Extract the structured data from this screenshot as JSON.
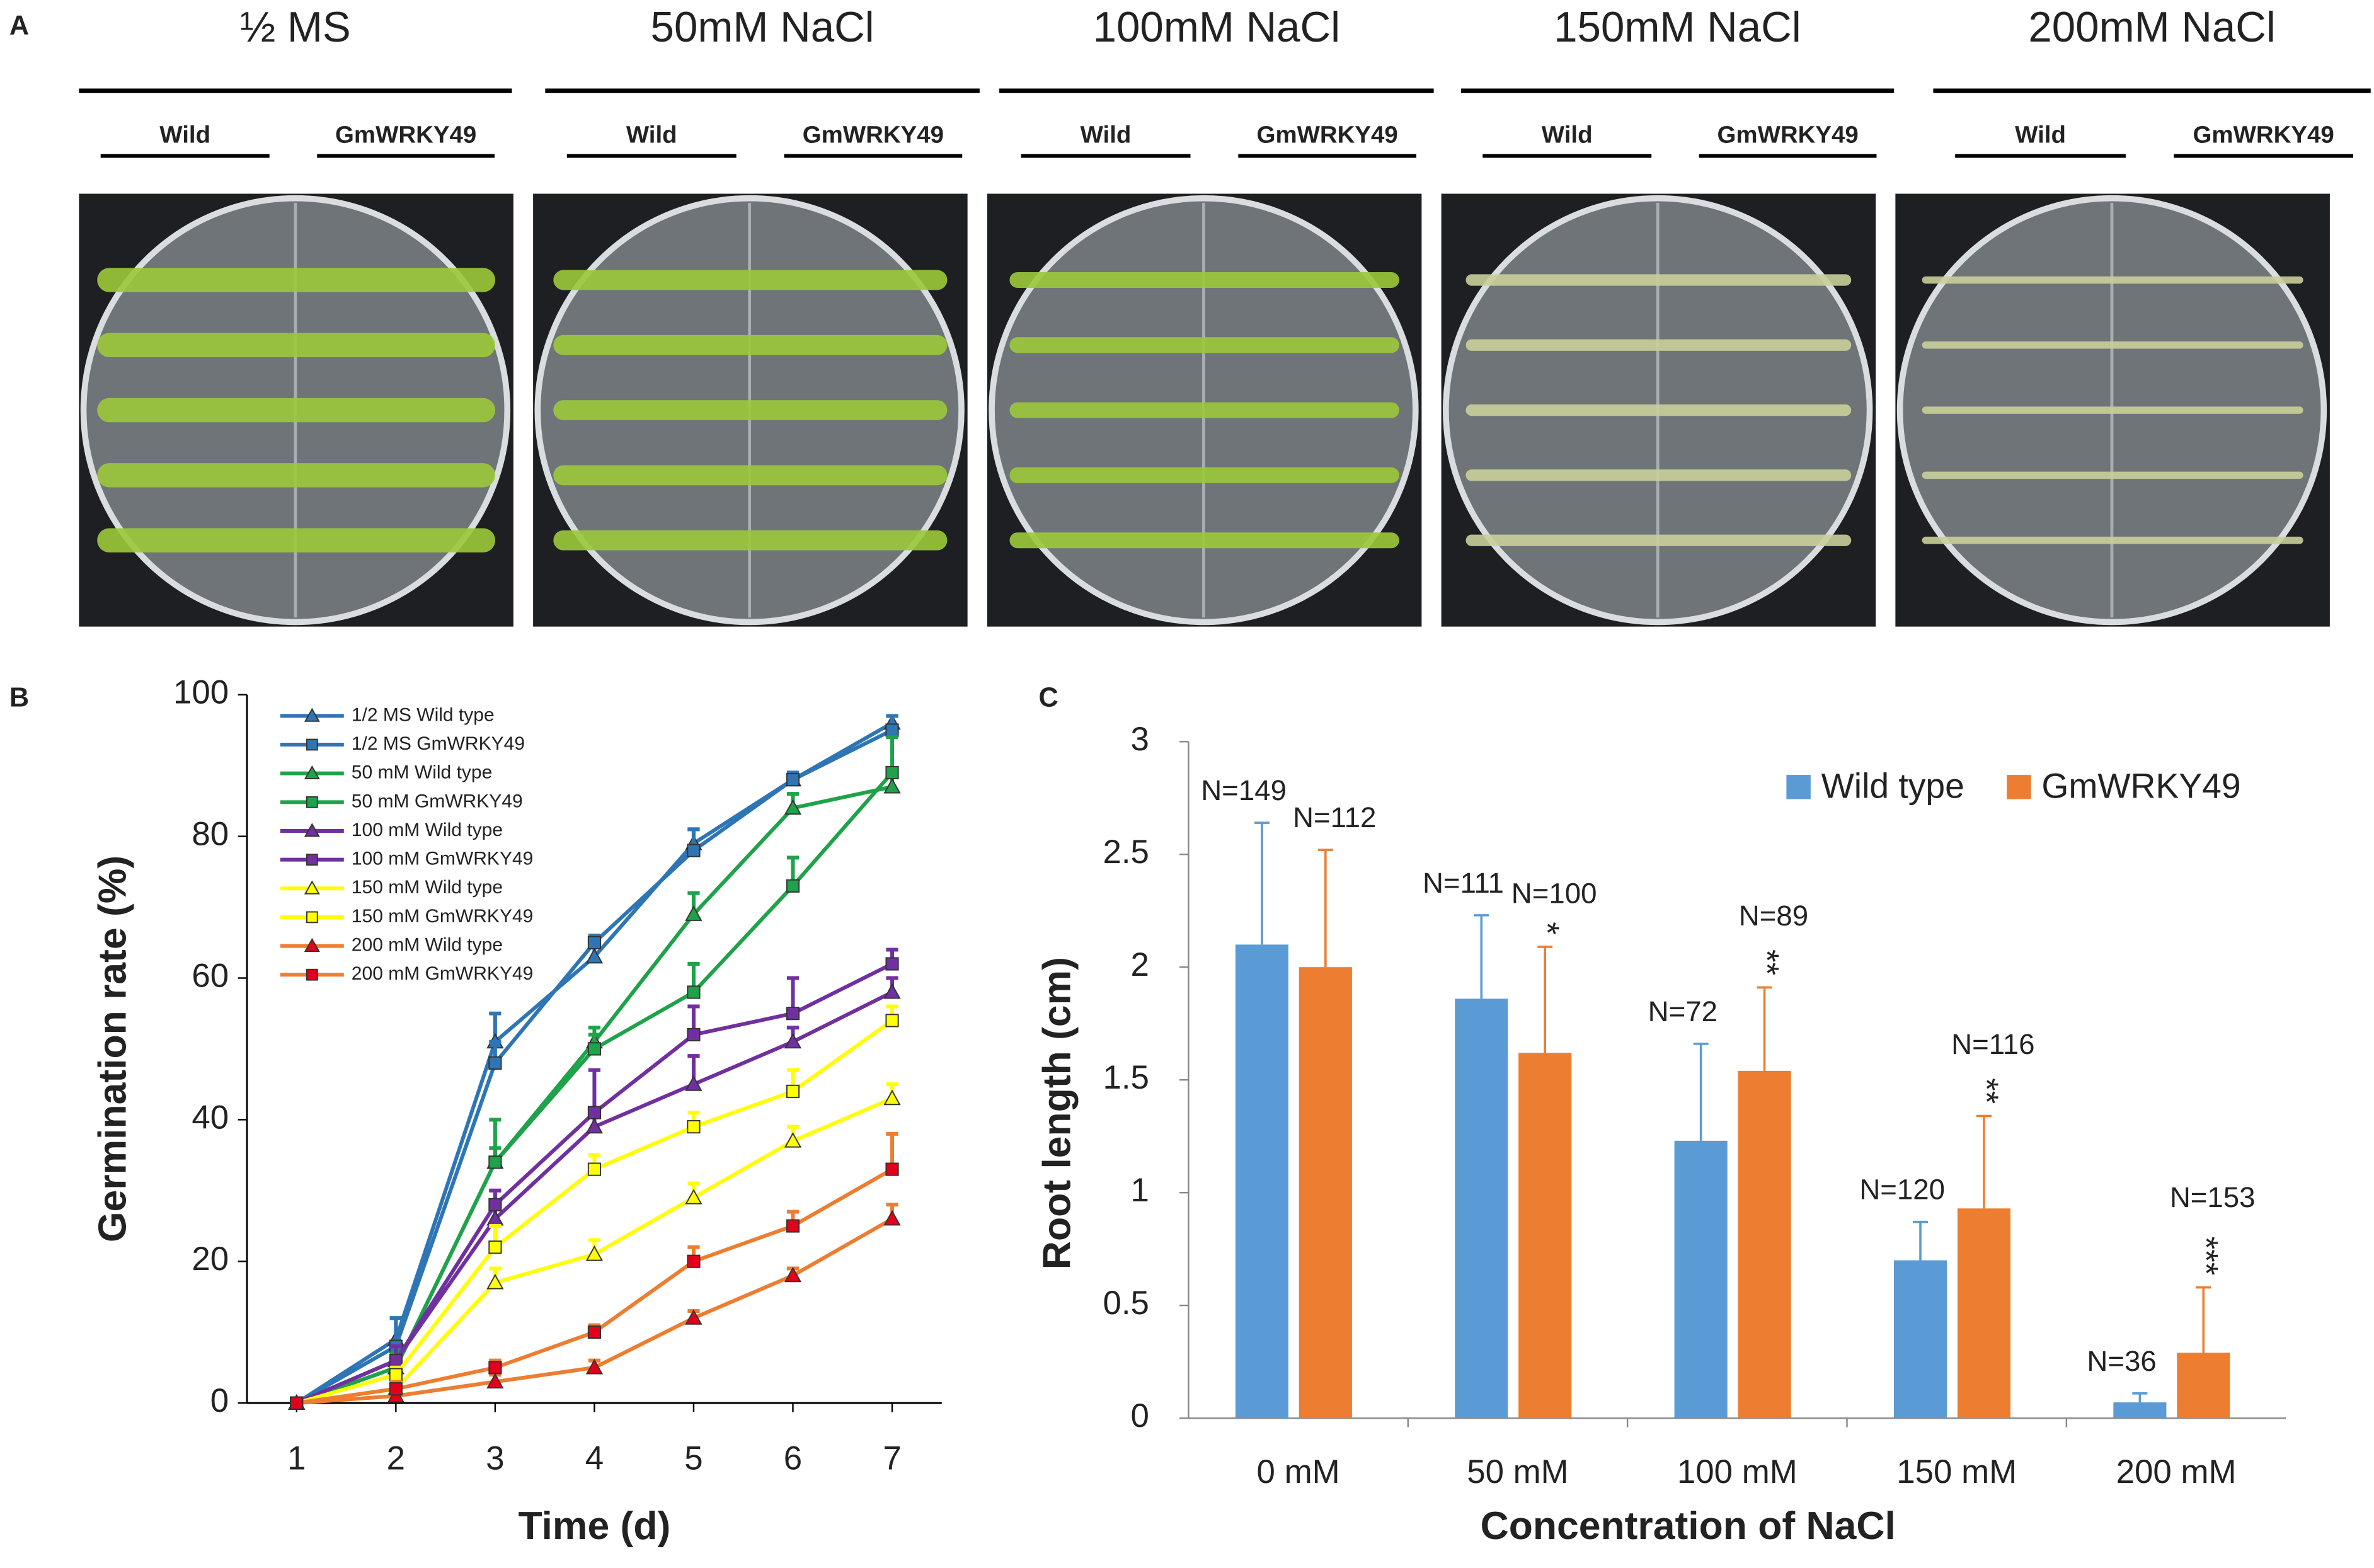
{
  "panels": {
    "a": {
      "label": "A",
      "conditions": [
        "½ MS",
        "50mM NaCl",
        "100mM NaCl",
        "150mM NaCl",
        "200mM NaCl"
      ],
      "genotypes": [
        "Wild",
        "GmWRKY49"
      ]
    },
    "b": {
      "label": "B"
    },
    "c": {
      "label": "C"
    }
  },
  "chart_data": [
    {
      "type": "line",
      "x_label": "Time (d)",
      "y_label": "Germination rate (%)",
      "x": [
        1,
        2,
        3,
        4,
        5,
        6,
        7
      ],
      "xlim": [
        0.5,
        7.5
      ],
      "xticks": [
        1,
        2,
        3,
        4,
        5,
        6,
        7
      ],
      "ylim": [
        0,
        100
      ],
      "yticks": [
        0,
        20,
        40,
        60,
        80,
        100
      ],
      "legend": "upper left",
      "series": [
        {
          "name": "1/2 MS Wild type",
          "color": "#2e75b6",
          "marker": "triangle",
          "values": [
            0,
            9,
            51,
            63,
            79,
            88,
            96
          ],
          "errors": [
            0,
            3,
            4,
            2,
            2,
            1,
            1
          ]
        },
        {
          "name": "1/2 MS GmWRKY49",
          "color": "#2e75b6",
          "marker": "square",
          "values": [
            0,
            8,
            48,
            65,
            78,
            88,
            95
          ],
          "errors": [
            0,
            4,
            3,
            1,
            3,
            1,
            2
          ]
        },
        {
          "name": "50 mM Wild type",
          "color": "#1ea24a",
          "marker": "triangle",
          "values": [
            0,
            5,
            34,
            51,
            69,
            84,
            87
          ],
          "errors": [
            0,
            2,
            6,
            2,
            3,
            2,
            2
          ]
        },
        {
          "name": "50 mM GmWRKY49",
          "color": "#1ea24a",
          "marker": "square",
          "values": [
            0,
            5,
            34,
            50,
            58,
            73,
            89
          ],
          "errors": [
            0,
            2,
            2,
            2,
            4,
            4,
            5
          ]
        },
        {
          "name": "100 mM Wild type",
          "color": "#7030a0",
          "marker": "triangle",
          "values": [
            0,
            6,
            26,
            39,
            45,
            51,
            58
          ],
          "errors": [
            0,
            2,
            2,
            2,
            4,
            2,
            2
          ]
        },
        {
          "name": "100 mM GmWRKY49",
          "color": "#7030a0",
          "marker": "square",
          "values": [
            0,
            6,
            28,
            41,
            52,
            55,
            62
          ],
          "errors": [
            0,
            2,
            2,
            6,
            4,
            5,
            2
          ]
        },
        {
          "name": "150 mM Wild type",
          "color": "#ffff00",
          "marker": "triangle",
          "values": [
            0,
            2,
            17,
            21,
            29,
            37,
            43
          ],
          "errors": [
            0,
            1,
            2,
            2,
            2,
            2,
            2
          ]
        },
        {
          "name": "150 mM GmWRKY49",
          "color": "#ffff00",
          "marker": "square",
          "values": [
            0,
            4,
            22,
            33,
            39,
            44,
            54
          ],
          "errors": [
            0,
            1,
            3,
            2,
            2,
            3,
            2
          ]
        },
        {
          "name": "200 mM Wild type",
          "color": "#ed7d31",
          "marker": "triangle",
          "marker_color": "#e2001a",
          "values": [
            0,
            1,
            3,
            5,
            12,
            18,
            26
          ],
          "errors": [
            0,
            1,
            1,
            1,
            1,
            1,
            2
          ]
        },
        {
          "name": "200 mM GmWRKY49",
          "color": "#ed7d31",
          "marker": "square",
          "marker_color": "#e2001a",
          "values": [
            0,
            2,
            5,
            10,
            20,
            25,
            33
          ],
          "errors": [
            0,
            1,
            1,
            1,
            2,
            2,
            5
          ]
        }
      ]
    },
    {
      "type": "bar",
      "x_label": "Concentration of NaCl",
      "y_label": "Root length (cm)",
      "categories": [
        "0 mM",
        "50 mM",
        "100 mM",
        "150 mM",
        "200 mM"
      ],
      "ylim": [
        0,
        3
      ],
      "yticks": [
        0,
        0.5,
        1,
        1.5,
        2,
        2.5,
        3
      ],
      "legend": "upper right",
      "series": [
        {
          "name": "Wild type",
          "color": "#5b9bd5",
          "values": [
            2.1,
            1.86,
            1.23,
            0.7,
            0.07
          ],
          "errors": [
            0.54,
            0.37,
            0.43,
            0.17,
            0.04
          ],
          "n_labels": [
            "N=149",
            "N=111",
            "N=72",
            "N=120",
            "N=36"
          ],
          "significance": [
            null,
            null,
            null,
            null,
            null
          ]
        },
        {
          "name": "GmWRKY49",
          "color": "#ed7d31",
          "values": [
            2.0,
            1.62,
            1.54,
            0.93,
            0.29
          ],
          "errors": [
            0.52,
            0.47,
            0.37,
            0.41,
            0.29
          ],
          "n_labels": [
            "N=112",
            "N=100",
            "N=89",
            "N=116",
            "N=153"
          ],
          "significance": [
            null,
            "*",
            "**",
            "**",
            "***"
          ]
        }
      ]
    }
  ]
}
